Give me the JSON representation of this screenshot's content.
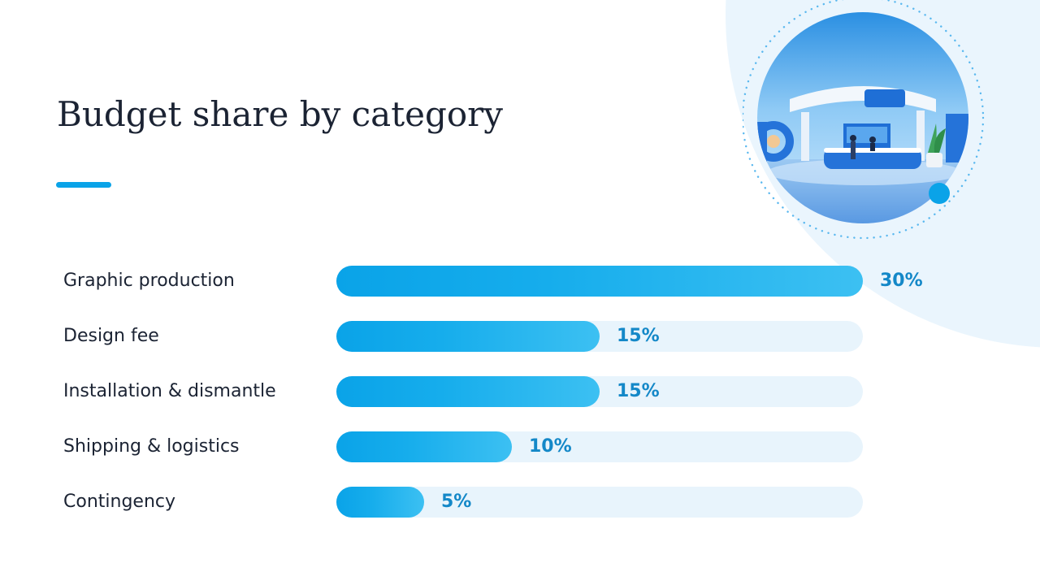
{
  "colors": {
    "accent": "#0aa3e8",
    "bar_fill_start": "#0aa3e8",
    "bar_fill_end": "#3cc0f2",
    "track": "#e8f4fc",
    "value_text": "#1488c8",
    "title_text": "#1b2333",
    "background_blob": "#eaf5fd"
  },
  "illustration": {
    "icon": "exhibition-booth-photo"
  },
  "chart_data": {
    "type": "bar",
    "orientation": "horizontal",
    "title": "Budget share by category",
    "categories": [
      "Graphic production",
      "Design fee",
      "Installation & dismantle",
      "Shipping & logistics",
      "Contingency"
    ],
    "values": [
      30,
      15,
      15,
      10,
      5
    ],
    "value_labels": [
      "30%",
      "15%",
      "15%",
      "10%",
      "5%"
    ],
    "xlim": [
      0,
      30
    ],
    "grid": false,
    "legend": "none"
  }
}
